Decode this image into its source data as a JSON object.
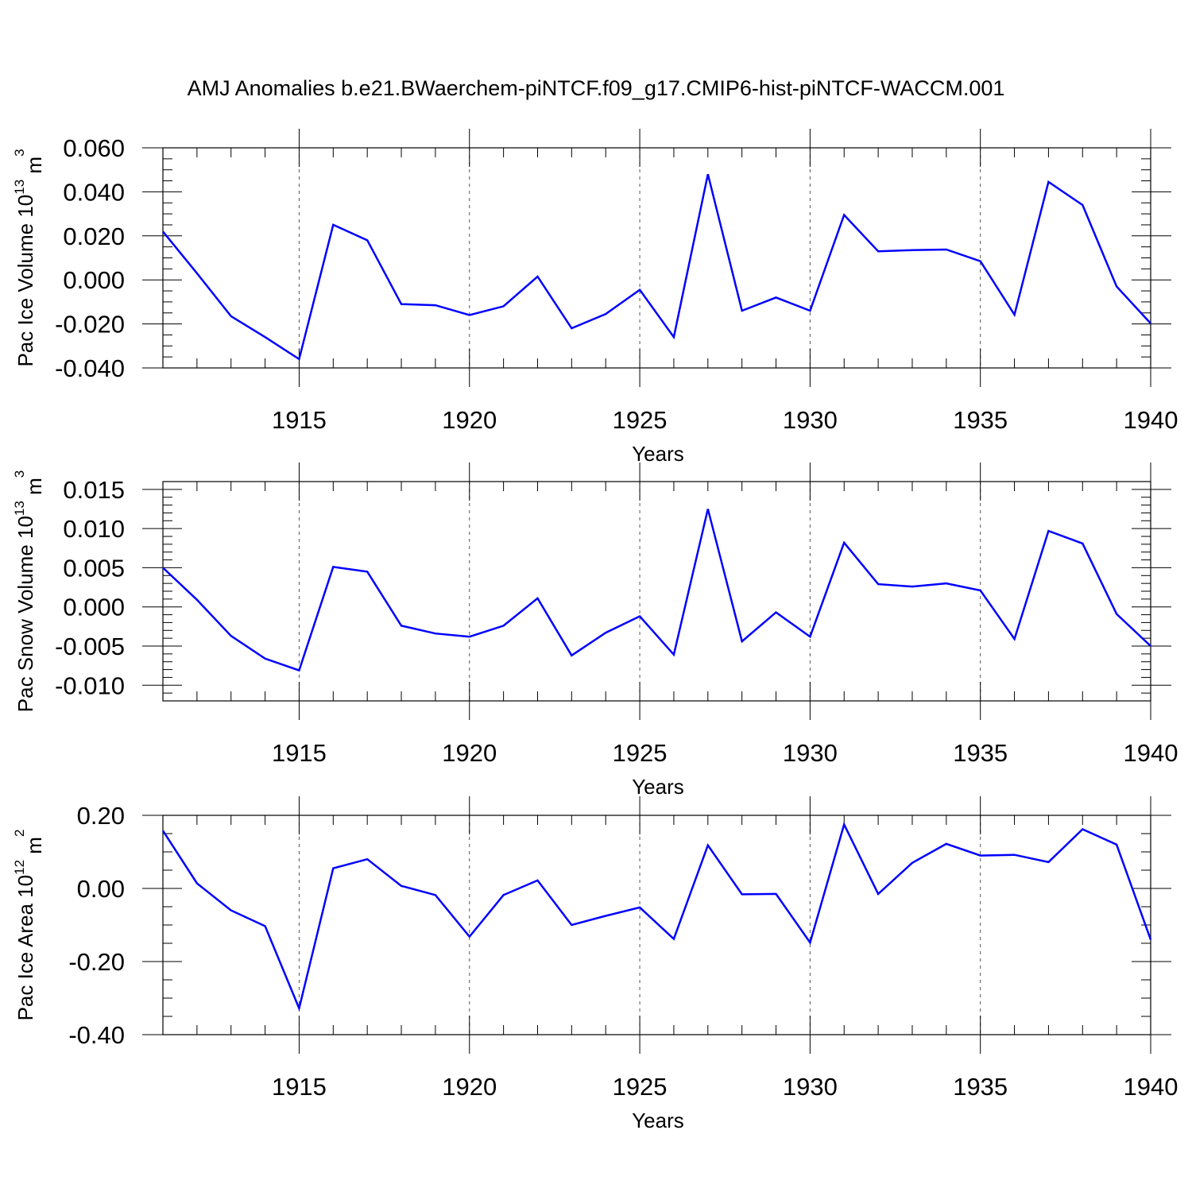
{
  "title": "AMJ Anomalies b.e21.BWaerchem-piNTCF.f09_g17.CMIP6-hist-piNTCF-WACCM.001",
  "line_color": "#0000ff",
  "grid_color": "#555555",
  "chart_data": [
    {
      "type": "line",
      "name": "ice-volume",
      "ylabel": "Pac Ice Volume 10",
      "ylabel_exp": "13",
      "ylabel_unit": " m",
      "ylabel_unit_exp": "3",
      "xlabel": "Years",
      "xlim": [
        1911,
        1940
      ],
      "ylim": [
        -0.04,
        0.06
      ],
      "yticks": [
        -0.04,
        -0.02,
        0.0,
        0.02,
        0.04,
        0.06
      ],
      "ytick_labels": [
        "-0.040",
        "-0.020",
        "0.000",
        "0.020",
        "0.040",
        "0.060"
      ],
      "yminor_step": 0.005,
      "xticks": [
        1915,
        1920,
        1925,
        1930,
        1935,
        1940
      ],
      "xtick_labels": [
        "1915",
        "1920",
        "1925",
        "1930",
        "1935",
        "1940"
      ],
      "x": [
        1911,
        1912,
        1913,
        1914,
        1915,
        1916,
        1917,
        1918,
        1919,
        1920,
        1921,
        1922,
        1923,
        1924,
        1925,
        1926,
        1927,
        1928,
        1929,
        1930,
        1931,
        1932,
        1933,
        1934,
        1935,
        1936,
        1937,
        1938,
        1939,
        1940
      ],
      "values": [
        0.022,
        0.003,
        -0.0165,
        -0.026,
        -0.036,
        0.025,
        0.018,
        -0.011,
        -0.0115,
        -0.016,
        -0.012,
        0.0015,
        -0.022,
        -0.0155,
        -0.0045,
        -0.026,
        0.048,
        -0.014,
        -0.008,
        -0.014,
        0.0295,
        0.013,
        0.0135,
        0.0138,
        0.0085,
        -0.0158,
        0.0445,
        0.034,
        -0.003,
        -0.0198
      ]
    },
    {
      "type": "line",
      "name": "snow-volume",
      "ylabel": "Pac Snow Volume 10",
      "ylabel_exp": "13",
      "ylabel_unit": " m",
      "ylabel_unit_exp": "3",
      "xlabel": "Years",
      "xlim": [
        1911,
        1940
      ],
      "ylim": [
        -0.012,
        0.016
      ],
      "yticks": [
        -0.01,
        -0.005,
        0.0,
        0.005,
        0.01,
        0.015
      ],
      "ytick_labels": [
        "-0.010",
        "-0.005",
        "0.000",
        "0.005",
        "0.010",
        "0.015"
      ],
      "yminor_step": 0.001,
      "xticks": [
        1915,
        1920,
        1925,
        1930,
        1935,
        1940
      ],
      "xtick_labels": [
        "1915",
        "1920",
        "1925",
        "1930",
        "1935",
        "1940"
      ],
      "x": [
        1911,
        1912,
        1913,
        1914,
        1915,
        1916,
        1917,
        1918,
        1919,
        1920,
        1921,
        1922,
        1923,
        1924,
        1925,
        1926,
        1927,
        1928,
        1929,
        1930,
        1931,
        1932,
        1933,
        1934,
        1935,
        1936,
        1937,
        1938,
        1939,
        1940
      ],
      "values": [
        0.005,
        0.0009,
        -0.0037,
        -0.0066,
        -0.0081,
        0.0051,
        0.0045,
        -0.0024,
        -0.0034,
        -0.0038,
        -0.0024,
        0.0011,
        -0.0062,
        -0.0033,
        -0.0012,
        -0.0061,
        0.0125,
        -0.0044,
        -0.0007,
        -0.0038,
        0.0082,
        0.0029,
        0.0026,
        0.003,
        0.0021,
        -0.0041,
        0.0097,
        0.0081,
        -0.0009,
        -0.005
      ]
    },
    {
      "type": "line",
      "name": "ice-area",
      "ylabel": "Pac Ice Area 10",
      "ylabel_exp": "12",
      "ylabel_unit": " m",
      "ylabel_unit_exp": "2",
      "xlabel": "Years",
      "xlim": [
        1911,
        1940
      ],
      "ylim": [
        -0.4,
        0.2
      ],
      "yticks": [
        -0.4,
        -0.2,
        0.0,
        0.2
      ],
      "ytick_labels": [
        "-0.40",
        "-0.20",
        "0.00",
        "0.20"
      ],
      "yminor_step": 0.05,
      "xticks": [
        1915,
        1920,
        1925,
        1930,
        1935,
        1940
      ],
      "xtick_labels": [
        "1915",
        "1920",
        "1925",
        "1930",
        "1935",
        "1940"
      ],
      "x": [
        1911,
        1912,
        1913,
        1914,
        1915,
        1916,
        1917,
        1918,
        1919,
        1920,
        1921,
        1922,
        1923,
        1924,
        1925,
        1926,
        1927,
        1928,
        1929,
        1930,
        1931,
        1932,
        1933,
        1934,
        1935,
        1936,
        1937,
        1938,
        1939,
        1940
      ],
      "values": [
        0.158,
        0.014,
        -0.06,
        -0.103,
        -0.328,
        0.055,
        0.08,
        0.007,
        -0.018,
        -0.132,
        -0.018,
        0.022,
        -0.1,
        -0.075,
        -0.052,
        -0.138,
        0.118,
        -0.016,
        -0.015,
        -0.148,
        0.175,
        -0.015,
        0.07,
        0.122,
        0.09,
        0.092,
        0.072,
        0.162,
        0.12,
        -0.14
      ]
    }
  ]
}
